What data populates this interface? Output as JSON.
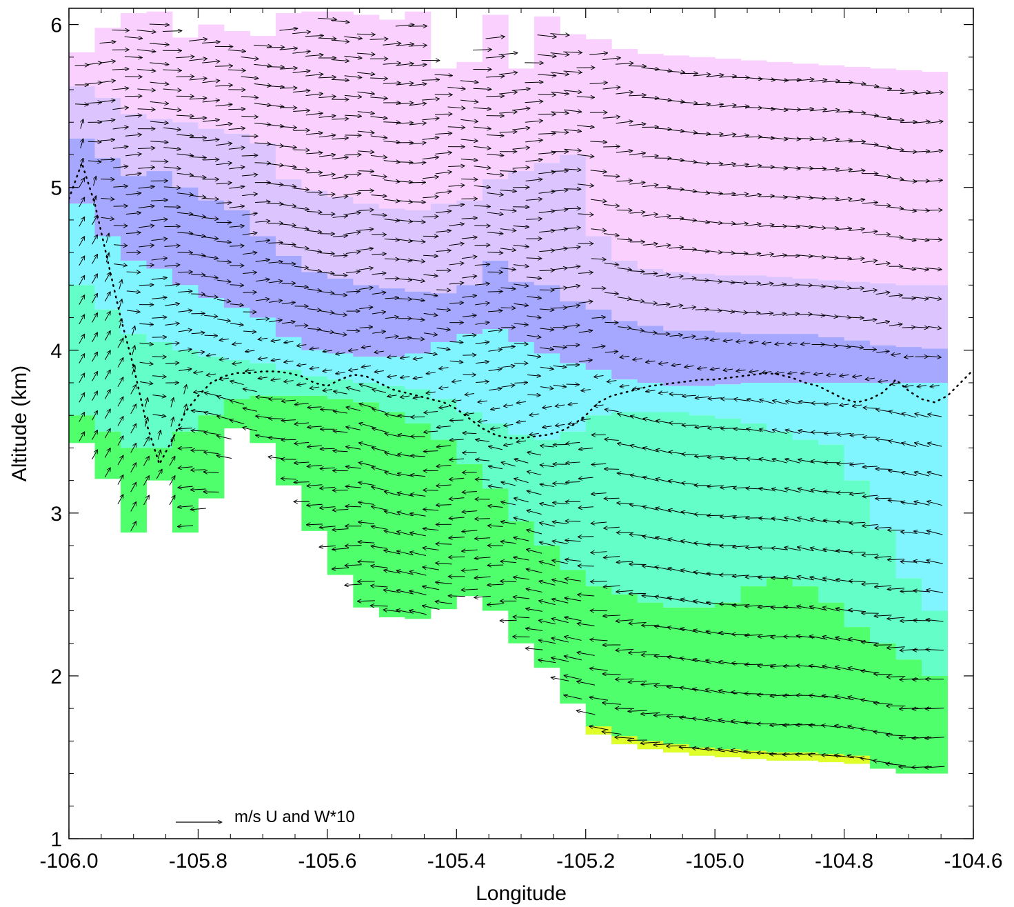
{
  "chart_data": {
    "type": "vector-field-cross-section",
    "xlabel": "Longitude",
    "ylabel": "Altitude (km)",
    "xlim": [
      -106.0,
      -104.6
    ],
    "ylim": [
      1.0,
      6.1
    ],
    "xticks": [
      "-106.0",
      "-105.8",
      "-105.6",
      "-105.4",
      "-105.2",
      "-105.0",
      "-104.8",
      "-104.6"
    ],
    "xtick_values": [
      -106.0,
      -105.8,
      -105.6,
      -105.4,
      -105.2,
      -105.0,
      -104.8,
      -104.6
    ],
    "yticks": [
      "1",
      "2",
      "3",
      "4",
      "5",
      "6"
    ],
    "ytick_values": [
      1,
      2,
      3,
      4,
      5,
      6
    ],
    "reference_vector_label": "m/s  U and W*10",
    "colors": {
      "magenta": "#fad0ff",
      "violet": "#dcc4ff",
      "blue": "#a6a8ff",
      "cyan": "#80f4ff",
      "teal": "#64ffc8",
      "green": "#50ff6c",
      "yellow": "#e0ff28"
    },
    "columns_lon": [
      -105.98,
      -105.94,
      -105.9,
      -105.86,
      -105.82,
      -105.78,
      -105.74,
      -105.7,
      -105.66,
      -105.62,
      -105.58,
      -105.54,
      -105.5,
      -105.46,
      -105.42,
      -105.38,
      -105.34,
      -105.3,
      -105.26,
      -105.22,
      -105.18,
      -105.14,
      -105.1,
      -105.06,
      -105.02,
      -104.98,
      -104.94,
      -104.9,
      -104.86,
      -104.82,
      -104.78,
      -104.74,
      -104.7,
      -104.66
    ],
    "column_top_km": [
      5.83,
      5.98,
      6.07,
      6.08,
      5.92,
      6.0,
      5.96,
      5.93,
      6.07,
      6.08,
      6.08,
      6.06,
      6.03,
      6.08,
      5.73,
      5.77,
      6.06,
      5.73,
      6.05,
      5.94,
      5.91,
      5.85,
      5.82,
      5.81,
      5.8,
      5.79,
      5.78,
      5.77,
      5.76,
      5.75,
      5.74,
      5.73,
      5.72,
      5.71
    ],
    "column_bottom_km": [
      3.43,
      3.21,
      2.88,
      3.2,
      2.88,
      3.09,
      3.52,
      3.43,
      3.17,
      2.89,
      2.62,
      2.42,
      2.36,
      2.35,
      2.41,
      2.49,
      2.4,
      2.2,
      2.05,
      1.83,
      1.64,
      1.58,
      1.55,
      1.53,
      1.51,
      1.5,
      1.49,
      1.48,
      1.48,
      1.47,
      1.46,
      1.43,
      1.4,
      1.4
    ],
    "band_interfaces_km": {
      "magenta_violet": [
        5.62,
        5.55,
        5.45,
        5.42,
        5.4,
        5.36,
        5.33,
        5.27,
        5.05,
        4.98,
        4.94,
        4.9,
        4.87,
        4.86,
        4.9,
        4.92,
        5.05,
        5.1,
        5.15,
        5.2,
        4.7,
        4.55,
        4.5,
        4.48,
        4.47,
        4.46,
        4.46,
        4.45,
        4.44,
        4.43,
        4.42,
        4.41,
        4.4,
        4.4
      ],
      "violet_blue": [
        5.3,
        5.18,
        5.07,
        5.1,
        5.0,
        4.92,
        4.86,
        4.7,
        4.58,
        4.48,
        4.44,
        4.4,
        4.38,
        4.36,
        4.35,
        4.4,
        4.55,
        4.42,
        4.4,
        4.3,
        4.25,
        4.18,
        4.15,
        4.12,
        4.12,
        4.11,
        4.1,
        4.1,
        4.1,
        4.08,
        4.06,
        4.03,
        4.02,
        4.01
      ],
      "blue_cyan": [
        4.9,
        4.7,
        4.55,
        4.5,
        4.4,
        4.32,
        4.26,
        4.2,
        4.08,
        4.0,
        3.98,
        3.96,
        3.96,
        3.98,
        4.05,
        4.1,
        4.13,
        4.05,
        3.98,
        3.92,
        3.88,
        3.82,
        3.8,
        3.78,
        3.78,
        3.79,
        3.8,
        3.8,
        3.8,
        3.8,
        3.8,
        3.8,
        3.8,
        3.8
      ],
      "cyan_teal": [
        4.4,
        4.25,
        4.1,
        4.05,
        4.0,
        3.96,
        3.94,
        3.92,
        3.88,
        3.84,
        3.82,
        3.8,
        3.78,
        3.76,
        3.7,
        3.62,
        3.55,
        3.48,
        3.45,
        3.5,
        3.6,
        3.62,
        3.62,
        3.62,
        3.6,
        3.58,
        3.55,
        3.5,
        3.45,
        3.42,
        3.2,
        2.9,
        2.6,
        2.4
      ],
      "teal_green": [
        3.6,
        3.5,
        3.4,
        3.4,
        3.5,
        3.6,
        3.7,
        3.72,
        3.72,
        3.72,
        3.7,
        3.68,
        3.62,
        3.55,
        3.45,
        3.3,
        3.15,
        2.95,
        2.8,
        2.65,
        2.55,
        2.5,
        2.45,
        2.42,
        2.42,
        2.45,
        2.55,
        2.6,
        2.55,
        2.45,
        2.3,
        2.2,
        2.1,
        2.0
      ]
    },
    "dotted_line": {
      "lon": [
        -106.0,
        -105.98,
        -105.96,
        -105.94,
        -105.92,
        -105.9,
        -105.88,
        -105.86,
        -105.84,
        -105.82,
        -105.8,
        -105.78,
        -105.76,
        -105.74,
        -105.72,
        -105.7,
        -105.68,
        -105.66,
        -105.64,
        -105.62,
        -105.6,
        -105.58,
        -105.56,
        -105.54,
        -105.52,
        -105.5,
        -105.48,
        -105.46,
        -105.44,
        -105.42,
        -105.4,
        -105.38,
        -105.36,
        -105.34,
        -105.32,
        -105.3,
        -105.28,
        -105.26,
        -105.24,
        -105.22,
        -105.2,
        -105.18,
        -105.16,
        -105.14,
        -105.12,
        -105.1,
        -105.08,
        -105.06,
        -105.04,
        -105.02,
        -105.0,
        -104.98,
        -104.96,
        -104.94,
        -104.92,
        -104.9,
        -104.88,
        -104.86,
        -104.84,
        -104.82,
        -104.8,
        -104.78,
        -104.76,
        -104.74,
        -104.72,
        -104.7,
        -104.68,
        -104.66,
        -104.64,
        -104.62,
        -104.6
      ],
      "alt": [
        4.93,
        5.15,
        4.9,
        4.55,
        4.2,
        3.9,
        3.55,
        3.3,
        3.45,
        3.62,
        3.72,
        3.8,
        3.84,
        3.86,
        3.86,
        3.87,
        3.87,
        3.86,
        3.84,
        3.8,
        3.78,
        3.82,
        3.85,
        3.84,
        3.8,
        3.76,
        3.74,
        3.72,
        3.7,
        3.68,
        3.64,
        3.58,
        3.52,
        3.48,
        3.46,
        3.46,
        3.47,
        3.48,
        3.5,
        3.54,
        3.6,
        3.68,
        3.72,
        3.74,
        3.76,
        3.78,
        3.79,
        3.8,
        3.81,
        3.82,
        3.82,
        3.83,
        3.84,
        3.85,
        3.86,
        3.85,
        3.83,
        3.8,
        3.78,
        3.74,
        3.7,
        3.68,
        3.7,
        3.74,
        3.82,
        3.75,
        3.7,
        3.68,
        3.72,
        3.8,
        3.88
      ]
    }
  }
}
